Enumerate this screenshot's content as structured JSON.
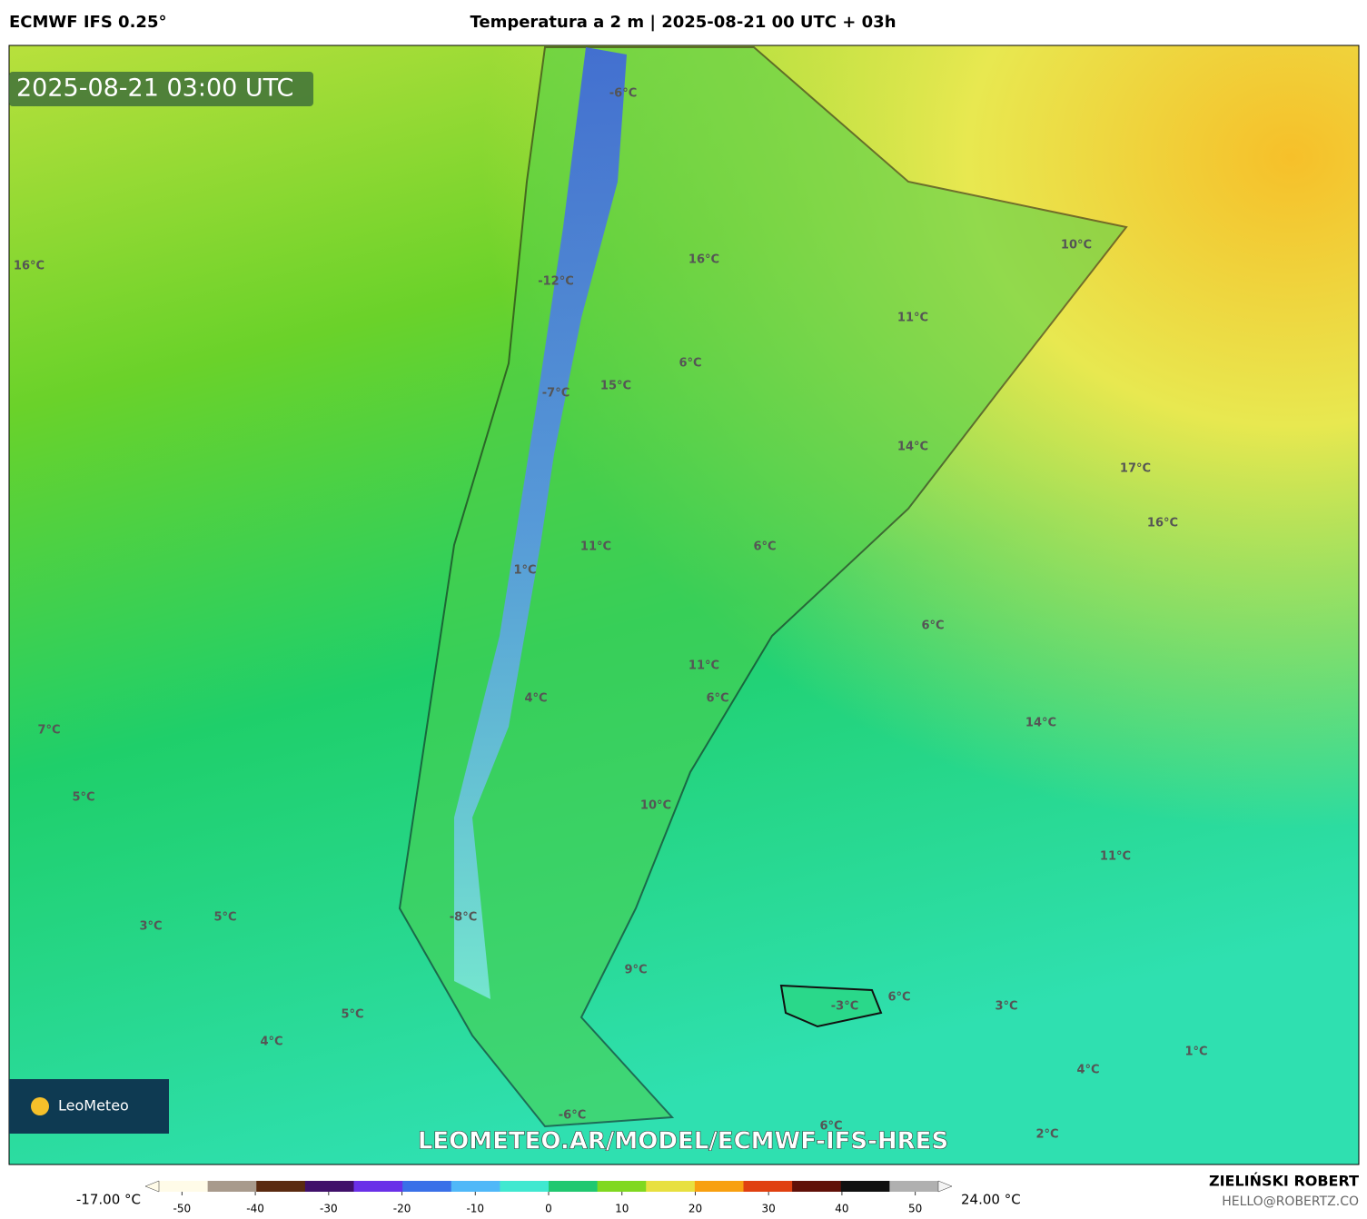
{
  "header": {
    "model": "ECMWF IFS 0.25°",
    "title": "Temperatura a 2 m | 2025-08-21 00 UTC + 03h"
  },
  "map": {
    "timestamp": "2025-08-21 03:00 UTC",
    "logo": "LeoMeteo",
    "url": "LEOMETEO.AR/MODEL/ECMWF-IFS-HRES",
    "labels": [
      "-6°C",
      "16°C",
      "16°C",
      "-12°C",
      "10°C",
      "11°C",
      "6°C",
      "15°C",
      "-7°C",
      "14°C",
      "17°C",
      "16°C",
      "11°C",
      "6°C",
      "1°C",
      "6°C",
      "11°C",
      "4°C",
      "6°C",
      "7°C",
      "14°C",
      "5°C",
      "10°C",
      "11°C",
      "5°C",
      "3°C",
      "-8°C",
      "9°C",
      "5°C",
      "6°C",
      "3°C",
      "-3°C",
      "4°C",
      "1°C",
      "4°C",
      "-6°C",
      "6°C",
      "2°C"
    ]
  },
  "colorbar": {
    "min_label": "-17.00 °C",
    "max_label": "24.00 °C",
    "lim": [
      -55,
      55
    ],
    "ticks": [
      -50,
      -40,
      -30,
      -20,
      -10,
      0,
      10,
      20,
      30,
      40,
      50
    ]
  },
  "footer": {
    "author": "ZIELIŃSKI ROBERT",
    "email": "HELLO@ROBERTZ.CO"
  }
}
